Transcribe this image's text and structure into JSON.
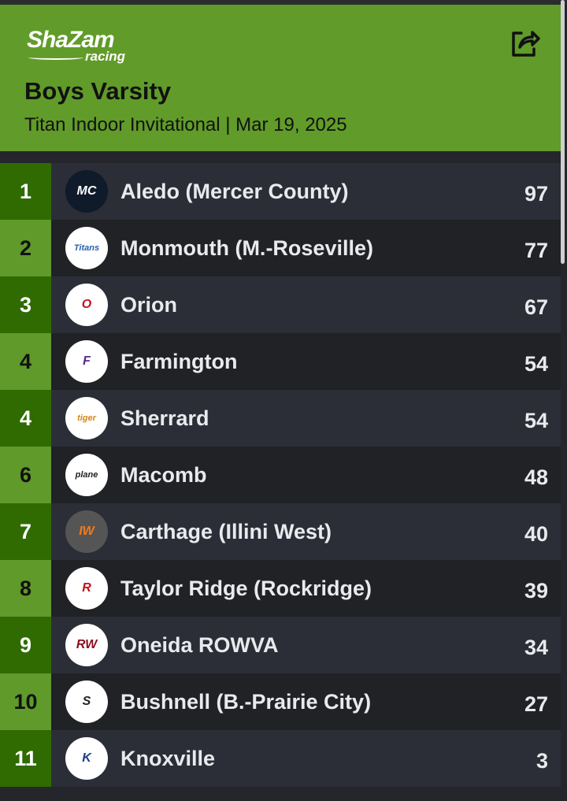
{
  "header": {
    "logo_text": "ShaZam",
    "logo_subtext": "racing",
    "title": "Boys Varsity",
    "subtitle": "Titan Indoor Invitational | Mar 19, 2025",
    "share_icon": "share-icon",
    "color": "#619b29"
  },
  "teams": [
    {
      "rank": "1",
      "name": "Aledo (Mercer County)",
      "score": "97",
      "logo": "MC"
    },
    {
      "rank": "2",
      "name": "Monmouth (M.-Roseville)",
      "score": "77",
      "logo": "Titans"
    },
    {
      "rank": "3",
      "name": "Orion",
      "score": "67",
      "logo": "O"
    },
    {
      "rank": "4",
      "name": "Farmington",
      "score": "54",
      "logo": "F"
    },
    {
      "rank": "4",
      "name": "Sherrard",
      "score": "54",
      "logo": "tiger"
    },
    {
      "rank": "6",
      "name": "Macomb",
      "score": "48",
      "logo": "plane"
    },
    {
      "rank": "7",
      "name": "Carthage (Illini West)",
      "score": "40",
      "logo": "IW"
    },
    {
      "rank": "8",
      "name": "Taylor Ridge (Rockridge)",
      "score": "39",
      "logo": "R"
    },
    {
      "rank": "9",
      "name": "Oneida ROWVA",
      "score": "34",
      "logo": "RW"
    },
    {
      "rank": "10",
      "name": "Bushnell (B.-Prairie City)",
      "score": "27",
      "logo": "S"
    },
    {
      "rank": "11",
      "name": "Knoxville",
      "score": "3",
      "logo": "K"
    }
  ]
}
